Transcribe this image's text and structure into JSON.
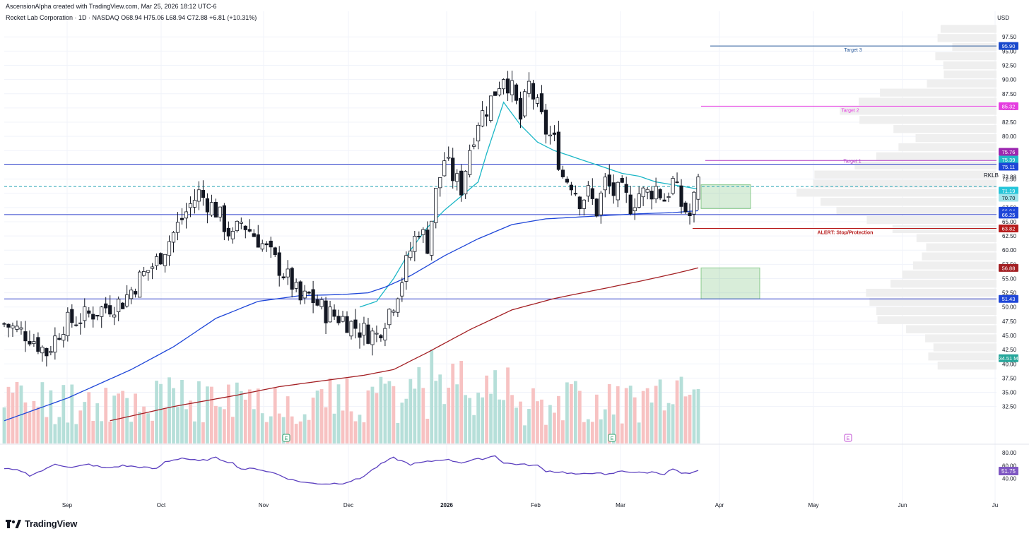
{
  "header": {
    "creator": "AscensionAlpha created with TradingView.com, Mar 25, 2026 18:12 UTC-6",
    "symbol_line": "Rocket Lab Corporation · 1D · NASDAQ  O68.94  H75.06  L68.94  C72.88  +6.81 (+10.31%)",
    "currency": "USD"
  },
  "branding": {
    "logo_text": "TradingView"
  },
  "colors": {
    "up": "#ffffff",
    "up_border": "#131722",
    "down": "#131722",
    "ema_cyan": "#1ab6c6",
    "ma_blue": "#1e46d8",
    "ma_red": "#a31f23",
    "vol_up": "#b6dfd9",
    "vol_down": "#f7c2c2",
    "rsi": "#5b3fbf",
    "hline": "#3344cc",
    "grid": "#f0f3fa",
    "vp": "#efefef"
  },
  "chart_data": {
    "type": "candlestick",
    "title": "Rocket Lab Corporation · 1D · NASDAQ",
    "ylabel": "USD",
    "ylim": [
      26,
      102
    ],
    "y_ticks": [
      "32.50",
      "35.00",
      "37.50",
      "40.00",
      "42.50",
      "45.00",
      "47.50",
      "50.00",
      "52.50",
      "55.00",
      "57.50",
      "60.00",
      "62.50",
      "65.00",
      "67.50",
      "70.00",
      "72.50",
      "75.00",
      "77.50",
      "80.00",
      "82.50",
      "85.00",
      "87.50",
      "90.00",
      "92.50",
      "95.00",
      "97.50"
    ],
    "x_ticks": [
      "Sep",
      "Oct",
      "Nov",
      "Dec",
      "2026",
      "Feb",
      "Mar",
      "Apr",
      "May",
      "Jun",
      "Ju"
    ],
    "last_close": 72.88,
    "horizontal_lines": [
      {
        "price": 75.11,
        "style": "solid"
      },
      {
        "price": 71.19,
        "style": "dashed"
      },
      {
        "price": 66.25,
        "style": "solid"
      },
      {
        "price": 51.43,
        "style": "solid"
      }
    ],
    "annotations": [
      {
        "label": "Target 3",
        "price": 95.9
      },
      {
        "label": "Target 2",
        "price": 85.32
      },
      {
        "label": "Target 1",
        "price": 75.76
      },
      {
        "label": "ALERT: Stop/Protection",
        "price": 63.82
      }
    ],
    "zones": [
      {
        "from": 67.3,
        "to": 71.5
      },
      {
        "from": 51.43,
        "to": 56.88
      }
    ],
    "price_labels": [
      {
        "text": "95.90",
        "price": 95.9
      },
      {
        "text": "85.32",
        "price": 85.32
      },
      {
        "text": "75.76",
        "price": 75.76
      },
      {
        "text": "75.39",
        "price": 75.39
      },
      {
        "text": "75.11",
        "price": 75.11
      },
      {
        "text": "RKLB",
        "price": 73.2
      },
      {
        "text": "72.88",
        "price": 72.88
      },
      {
        "text": "71.19",
        "price": 71.19
      },
      {
        "text": "70.70",
        "price": 70.7
      },
      {
        "text": "66.94",
        "price": 66.94
      },
      {
        "text": "66.25",
        "price": 66.25
      },
      {
        "text": "63.82",
        "price": 63.82
      },
      {
        "text": "56.88",
        "price": 56.88
      },
      {
        "text": "51.43",
        "price": 51.43
      },
      {
        "text": "34.51 M",
        "price": 41.0
      }
    ],
    "earnings_markers": [
      "E",
      "E",
      "E"
    ],
    "series": [
      {
        "name": "candles",
        "waypoints": [
          [
            0,
            47
          ],
          [
            6,
            45
          ],
          [
            10,
            42
          ],
          [
            14,
            47
          ],
          [
            18,
            48
          ],
          [
            24,
            50
          ],
          [
            28,
            51
          ],
          [
            32,
            55
          ],
          [
            36,
            58
          ],
          [
            40,
            63
          ],
          [
            44,
            68
          ],
          [
            46,
            70
          ],
          [
            50,
            67
          ],
          [
            54,
            62
          ],
          [
            56,
            65
          ],
          [
            60,
            62
          ],
          [
            64,
            58
          ],
          [
            68,
            54
          ],
          [
            70,
            51
          ],
          [
            72,
            52
          ],
          [
            76,
            49
          ],
          [
            80,
            48
          ],
          [
            84,
            46
          ],
          [
            88,
            45
          ],
          [
            90,
            48
          ],
          [
            92,
            51
          ],
          [
            94,
            55
          ],
          [
            96,
            60
          ],
          [
            98,
            64
          ],
          [
            100,
            61
          ],
          [
            102,
            70
          ],
          [
            104,
            76
          ],
          [
            106,
            73
          ],
          [
            108,
            71
          ],
          [
            110,
            78
          ],
          [
            112,
            83
          ],
          [
            114,
            85
          ],
          [
            116,
            88
          ],
          [
            118,
            91
          ],
          [
            120,
            88
          ],
          [
            122,
            83
          ],
          [
            124,
            89
          ],
          [
            126,
            85
          ],
          [
            128,
            81
          ],
          [
            130,
            79
          ],
          [
            132,
            73
          ],
          [
            134,
            72
          ],
          [
            136,
            69
          ],
          [
            138,
            70
          ],
          [
            140,
            67
          ],
          [
            142,
            72
          ],
          [
            144,
            70
          ],
          [
            146,
            70
          ],
          [
            148,
            68
          ],
          [
            150,
            70
          ],
          [
            152,
            70
          ],
          [
            154,
            71
          ],
          [
            156,
            69
          ],
          [
            158,
            72
          ],
          [
            160,
            68
          ],
          [
            162,
            66
          ],
          [
            163,
            69
          ],
          [
            164,
            72.88
          ]
        ]
      },
      {
        "name": "EMA (cyan)",
        "waypoints": [
          [
            84,
            50
          ],
          [
            88,
            51
          ],
          [
            92,
            55
          ],
          [
            96,
            60
          ],
          [
            100,
            64
          ],
          [
            104,
            67
          ],
          [
            108,
            69.5
          ],
          [
            112,
            72
          ],
          [
            114,
            77
          ],
          [
            118,
            86
          ],
          [
            122,
            82
          ],
          [
            126,
            79
          ],
          [
            130,
            77.5
          ],
          [
            134,
            76.5
          ],
          [
            138,
            75.5
          ],
          [
            142,
            74.5
          ],
          [
            146,
            73.5
          ],
          [
            150,
            73
          ],
          [
            154,
            72
          ],
          [
            158,
            71.5
          ],
          [
            162,
            71
          ],
          [
            164,
            70.7
          ]
        ]
      },
      {
        "name": "MA (blue)",
        "waypoints": [
          [
            0,
            30
          ],
          [
            15,
            34
          ],
          [
            30,
            39
          ],
          [
            40,
            43
          ],
          [
            50,
            48
          ],
          [
            60,
            51
          ],
          [
            70,
            52
          ],
          [
            80,
            52.2
          ],
          [
            86,
            52.5
          ],
          [
            90,
            53.5
          ],
          [
            96,
            55.5
          ],
          [
            104,
            59
          ],
          [
            112,
            62
          ],
          [
            120,
            64.5
          ],
          [
            128,
            65.5
          ],
          [
            140,
            66
          ],
          [
            150,
            66.4
          ],
          [
            158,
            66.6
          ],
          [
            164,
            66.94
          ]
        ]
      },
      {
        "name": "MA (red)",
        "waypoints": [
          [
            25,
            30
          ],
          [
            40,
            32.5
          ],
          [
            55,
            34.5
          ],
          [
            65,
            36
          ],
          [
            75,
            37
          ],
          [
            85,
            38
          ],
          [
            92,
            39
          ],
          [
            100,
            42
          ],
          [
            110,
            46
          ],
          [
            120,
            49.5
          ],
          [
            130,
            51.5
          ],
          [
            140,
            53
          ],
          [
            150,
            54.5
          ],
          [
            158,
            55.8
          ],
          [
            164,
            56.88
          ]
        ]
      },
      {
        "name": "RSI",
        "waypoints": [
          [
            0,
            55
          ],
          [
            4,
            52
          ],
          [
            6,
            45
          ],
          [
            10,
            55
          ],
          [
            12,
            63
          ],
          [
            16,
            57
          ],
          [
            20,
            62
          ],
          [
            24,
            56
          ],
          [
            28,
            60
          ],
          [
            32,
            58
          ],
          [
            36,
            55
          ],
          [
            38,
            66
          ],
          [
            42,
            72
          ],
          [
            46,
            67
          ],
          [
            50,
            72
          ],
          [
            54,
            64
          ],
          [
            56,
            55
          ],
          [
            60,
            55
          ],
          [
            64,
            48
          ],
          [
            68,
            38
          ],
          [
            72,
            33
          ],
          [
            76,
            32
          ],
          [
            80,
            33
          ],
          [
            84,
            40
          ],
          [
            88,
            58
          ],
          [
            90,
            66
          ],
          [
            92,
            72
          ],
          [
            96,
            62
          ],
          [
            100,
            66
          ],
          [
            104,
            70
          ],
          [
            108,
            65
          ],
          [
            112,
            70
          ],
          [
            114,
            72
          ],
          [
            116,
            76
          ],
          [
            118,
            64
          ],
          [
            122,
            62
          ],
          [
            126,
            60
          ],
          [
            128,
            52
          ],
          [
            132,
            50
          ],
          [
            136,
            46
          ],
          [
            140,
            50
          ],
          [
            142,
            45
          ],
          [
            146,
            52
          ],
          [
            150,
            49
          ],
          [
            154,
            50
          ],
          [
            156,
            47
          ],
          [
            158,
            55
          ],
          [
            160,
            48
          ],
          [
            162,
            47
          ],
          [
            164,
            51.75
          ]
        ]
      }
    ],
    "volume_label": "34.51 M",
    "rsi": {
      "ylim": [
        20,
        90
      ],
      "ticks": [
        "40.00",
        "60.00",
        "80.00"
      ],
      "last": 51.75,
      "label": "51.75"
    }
  }
}
